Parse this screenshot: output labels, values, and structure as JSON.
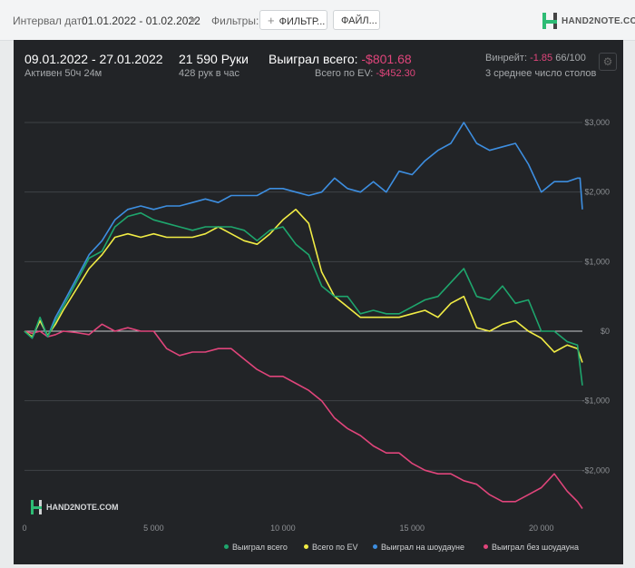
{
  "toolbar": {
    "interval_label": "Интервал дат:",
    "interval_value": "01.01.2022 - 01.02.2022",
    "filters_label": "Фильтры:",
    "filters_button": "ФИЛЬТР...",
    "files_button": "ФАЙЛ...",
    "logo_text": "HAND2NOTE.COM"
  },
  "summary": {
    "date_range": "09.01.2022 - 27.01.2022",
    "active": "Активен 50ч 24м",
    "hands": "21 590 Руки",
    "hands_per_hour": "428 рук в час",
    "won_label": "Выиграл всего:",
    "won_value": "-$801.68",
    "ev_label": "Всего по EV:",
    "ev_value": "-$452.30",
    "vinrate_label": "Винрейт:",
    "vinrate_value": "-1.85",
    "vinrate_tail": "66/100",
    "tables": "3 среднее число столов"
  },
  "watermark": "HAND2NOTE.COM",
  "colors": {
    "won": "#1ea66d",
    "ev": "#f1ec45",
    "showdown": "#3d8ee0",
    "nonshowdown": "#e0457b",
    "background": "#222427"
  },
  "chart_data": {
    "type": "line",
    "xlabel": "",
    "ylabel": "",
    "xlim": [
      0,
      21590
    ],
    "ylim": [
      -2700,
      3300
    ],
    "x_ticks": [
      {
        "value": 0,
        "label": "0"
      },
      {
        "value": 5000,
        "label": "5 000"
      },
      {
        "value": 10000,
        "label": "10 000"
      },
      {
        "value": 15000,
        "label": "15 000"
      },
      {
        "value": 20000,
        "label": "20 000"
      }
    ],
    "y_ticks": [
      {
        "value": 3000,
        "label": "$3,000"
      },
      {
        "value": 2000,
        "label": "$2,000"
      },
      {
        "value": 1000,
        "label": "$1,000"
      },
      {
        "value": 0,
        "label": "$0"
      },
      {
        "value": -1000,
        "label": "-$1,000"
      },
      {
        "value": -2000,
        "label": "-$2,000"
      }
    ],
    "grid": true,
    "legend_position": "bottom-right",
    "series": [
      {
        "name": "Выиграл всего",
        "color": "#1ea66d",
        "x": [
          0,
          300,
          600,
          900,
          1200,
          1500,
          2000,
          2500,
          3000,
          3500,
          4000,
          4500,
          5000,
          5500,
          6000,
          6500,
          7000,
          7500,
          8000,
          8500,
          9000,
          9500,
          10000,
          10500,
          11000,
          11500,
          12000,
          12500,
          13000,
          13500,
          14000,
          14500,
          15000,
          15500,
          16000,
          16500,
          17000,
          17500,
          18000,
          18500,
          19000,
          19500,
          20000,
          20500,
          21000,
          21400,
          21590
        ],
        "y": [
          0,
          -100,
          200,
          -80,
          150,
          350,
          700,
          1050,
          1150,
          1500,
          1650,
          1700,
          1600,
          1550,
          1500,
          1450,
          1500,
          1500,
          1500,
          1450,
          1300,
          1450,
          1500,
          1250,
          1100,
          650,
          500,
          500,
          250,
          300,
          250,
          250,
          350,
          450,
          500,
          700,
          900,
          500,
          450,
          650,
          400,
          450,
          0,
          0,
          -150,
          -200,
          -780
        ]
      },
      {
        "name": "Всего по EV",
        "color": "#f1ec45",
        "x": [
          0,
          300,
          600,
          900,
          1200,
          1500,
          2000,
          2500,
          3000,
          3500,
          4000,
          4500,
          5000,
          5500,
          6000,
          6500,
          7000,
          7500,
          8000,
          8500,
          9000,
          9500,
          10000,
          10500,
          11000,
          11500,
          12000,
          12500,
          13000,
          13500,
          14000,
          14500,
          15000,
          15500,
          16000,
          16500,
          17000,
          17500,
          18000,
          18500,
          19000,
          19500,
          20000,
          20500,
          21000,
          21400,
          21590
        ],
        "y": [
          0,
          -80,
          150,
          -60,
          100,
          300,
          600,
          900,
          1100,
          1350,
          1400,
          1350,
          1400,
          1350,
          1350,
          1350,
          1400,
          1500,
          1400,
          1300,
          1250,
          1400,
          1600,
          1750,
          1550,
          850,
          500,
          350,
          200,
          200,
          200,
          200,
          250,
          300,
          200,
          400,
          500,
          50,
          0,
          100,
          150,
          0,
          -100,
          -300,
          -200,
          -250,
          -450
        ]
      },
      {
        "name": "Выиграл на шоудауне",
        "color": "#3d8ee0",
        "x": [
          0,
          300,
          600,
          900,
          1200,
          1500,
          2000,
          2500,
          3000,
          3500,
          4000,
          4500,
          5000,
          5500,
          6000,
          6500,
          7000,
          7500,
          8000,
          8500,
          9000,
          9500,
          10000,
          10500,
          11000,
          11500,
          12000,
          12500,
          13000,
          13500,
          14000,
          14500,
          15000,
          15500,
          16000,
          16500,
          17000,
          17500,
          18000,
          18500,
          19000,
          19500,
          20000,
          20500,
          21000,
          21400,
          21500,
          21590
        ],
        "y": [
          0,
          -100,
          150,
          -80,
          200,
          400,
          750,
          1100,
          1300,
          1600,
          1750,
          1800,
          1750,
          1800,
          1800,
          1850,
          1900,
          1850,
          1950,
          1950,
          1950,
          2050,
          2050,
          2000,
          1950,
          2000,
          2200,
          2050,
          2000,
          2150,
          2000,
          2300,
          2250,
          2450,
          2600,
          2700,
          3000,
          2700,
          2600,
          2650,
          2700,
          2400,
          2000,
          2150,
          2150,
          2200,
          2200,
          1750
        ]
      },
      {
        "name": "Выиграл без шоудауна",
        "color": "#e0457b",
        "x": [
          0,
          300,
          600,
          900,
          1200,
          1500,
          2000,
          2500,
          3000,
          3500,
          4000,
          4500,
          5000,
          5500,
          6000,
          6500,
          7000,
          7500,
          8000,
          8500,
          9000,
          9500,
          10000,
          10500,
          11000,
          11500,
          12000,
          12500,
          13000,
          13500,
          14000,
          14500,
          15000,
          15500,
          16000,
          16500,
          17000,
          17500,
          18000,
          18500,
          19000,
          19500,
          20000,
          20500,
          21000,
          21400,
          21590
        ],
        "y": [
          0,
          -30,
          0,
          -80,
          -50,
          0,
          -20,
          -50,
          100,
          0,
          50,
          0,
          0,
          -250,
          -350,
          -300,
          -300,
          -250,
          -250,
          -400,
          -550,
          -650,
          -650,
          -750,
          -850,
          -1000,
          -1250,
          -1400,
          -1500,
          -1650,
          -1750,
          -1750,
          -1900,
          -2000,
          -2050,
          -2050,
          -2150,
          -2200,
          -2350,
          -2450,
          -2450,
          -2350,
          -2250,
          -2050,
          -2300,
          -2450,
          -2550
        ]
      }
    ]
  }
}
